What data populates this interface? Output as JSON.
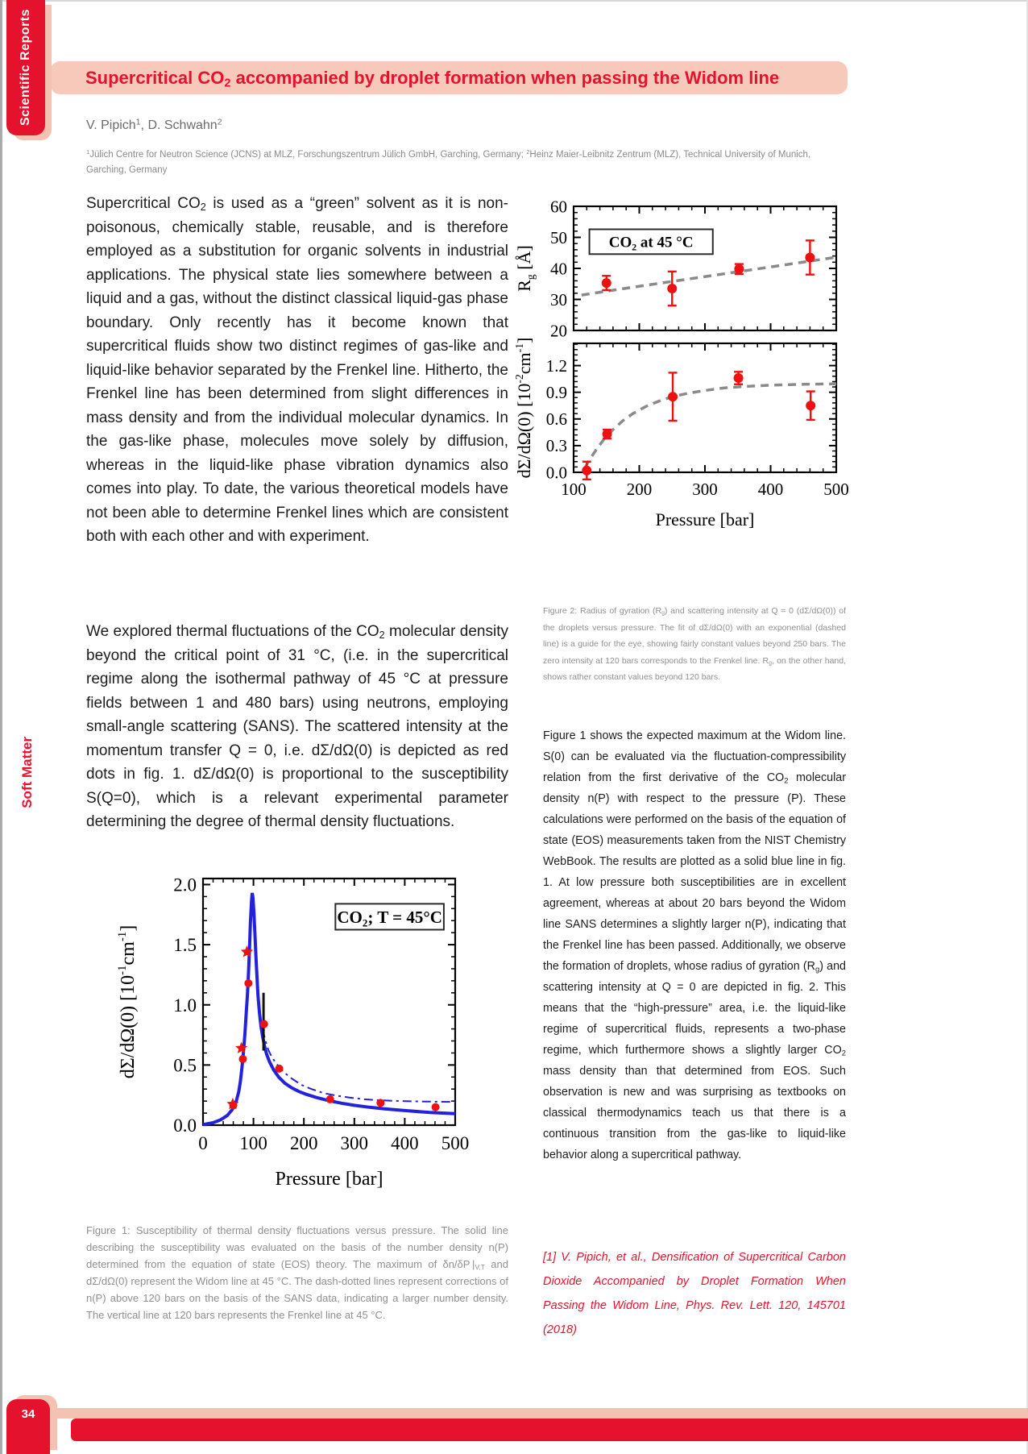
{
  "page": {
    "colors": {
      "accent_red": "#e5122d",
      "banner_pink": "#f7c9bb",
      "shadow_pink": "#f5c2b2",
      "caption_gray": "#8f8f8f",
      "body_text": "#1c1c1c"
    },
    "sidebar": {
      "journal_badge": "Scientific Reports",
      "section_label": "Soft Matter",
      "page_number": "34"
    },
    "header": {
      "title_html": "Supercritical CO<sub>2</sub> accompanied by droplet formation when passing the Widom line",
      "authors_html": "V. Pipich<sup>1</sup>, D. Schwahn<sup>2</sup>",
      "affiliation_html": "<sup>1</sup>Jülich Centre for Neutron Science (JCNS) at MLZ, Forschungszentrum Jülich GmbH, Garching, Germany; <sup>2</sup>Heinz Maier-Leibnitz Zentrum (MLZ), Technical University of Munich, Garching, Germany"
    },
    "left_column": {
      "paragraph1_html": "Supercritical CO<sub>2</sub> is used as a “green” solvent as it is non-poisonous, chemically stable, reusable, and is therefore employed as a substitution for organic solvents in industrial applications. The physical state lies somewhere between a liquid and a gas, without the distinct classical liquid-gas phase boundary. Only recently has it become known that supercritical fluids show two distinct regimes of gas-like and liquid-like behavior separated by the Frenkel line. Hitherto, the Frenkel line has been determined from slight differences in mass density and from the individual molecular dynamics. In the gas-like phase, molecules move solely by diffusion, whereas in the liquid-like phase vibration dynamics also comes into play. To date, the various theoretical models have not been able to determine Frenkel lines which are consistent both with each other and with experiment.",
      "paragraph2_html": "We explored thermal fluctuations of the CO<sub>2</sub> molecular density beyond the critical point of 31 °C, (i.e. in the supercritical regime along the isothermal pathway of 45 °C at pressure fields between 1 and 480 bars) using neutrons, employing small-angle scattering (SANS). The scattered intensity at the momentum transfer Q = 0, i.e. dΣ/dΩ(0) is depicted as red dots in fig. 1. dΣ/dΩ(0) is proportional to the susceptibility S(Q=0), which is a relevant experimental parameter determining the degree of thermal density fluctuations.",
      "figure1_caption_html": "Figure 1: Susceptibility of thermal density fluctuations versus pressure. The solid line describing the susceptibility was evaluated on the basis of the number density n(P) determined from the equation of state (EOS) theory. The maximum of δn/δP |<sub>V,T</sub> and dΣ/dΩ(0) represent the Widom line at 45 °C. The dash-dotted lines represent corrections of n(P) above 120 bars on the basis of the SANS data, indicating a larger number density. The vertical line at 120 bars represents the Frenkel line at 45 °C."
    },
    "right_column": {
      "figure2_caption_html": "Figure 2: Radius of gyration (R<sub>g</sub>) and scattering intensity at Q = 0 (dΣ/dΩ(0)) of the droplets versus pressure. The fit of dΣ/dΩ(0) with an exponential (dashed line) is a guide for the eye, showing fairly constant values beyond 250 bars. The zero intensity at 120 bars corresponds to the Frenkel line. R<sub>g</sub>, on the other hand, shows rather constant values beyond 120 bars.",
      "paragraph3_html": "Figure 1 shows the expected maximum at the Widom line. S(0) can be evaluated via the fluctuation-compressibility relation from the first derivative of the CO<sub>2</sub> molecular density n(P) with respect to the pressure (P). These calculations were performed on the basis of the equation of state (EOS) measurements taken from the NIST Chemistry WebBook. The results are plotted as a solid blue line in fig. 1. At low pressure both susceptibilities are in excellent agreement, whereas at about 20 bars beyond the Widom line SANS determines a slightly larger n(P), indicating that the Frenkel line has been passed. Additionally, we observe the formation of droplets, whose radius of gyration (R<sub>g</sub>) and scattering intensity at Q = 0 are depicted in fig. 2. This means that the “high-pressure” area, i.e. the liquid-like regime of supercritical fluids, represents a two-phase regime, which furthermore shows a slightly larger CO<sub>2</sub> mass density than that determined from EOS. Such observation is new and was surprising as textbooks on classical thermodynamics teach us that there is a continuous transition from the gas-like to liquid-like behavior along a supercritical pathway.",
      "reference_html": "[1] V. Pipich, et al., Densification of Supercritical Carbon Dioxide Accompanied by Droplet Formation When Passing the Widom Line, Phys. Rev. Lett. 120, 145701 (2018)"
    }
  },
  "chart_data": [
    {
      "id": "figure1",
      "type": "line",
      "annotation": [
        {
          "t": "CO"
        },
        {
          "t": "2",
          "sub": true
        },
        {
          "t": "; T = 45°C"
        }
      ],
      "xlabel": "Pressure [bar]",
      "ylabel": [
        {
          "t": "dΣ/dΩ(0) [10"
        },
        {
          "t": "-1",
          "sup": true
        },
        {
          "t": "cm"
        },
        {
          "t": "-1",
          "sup": true
        },
        {
          "t": "]"
        }
      ],
      "xlim": [
        0,
        500
      ],
      "ylim": [
        0,
        2.05
      ],
      "xticks": [
        0,
        100,
        200,
        300,
        400,
        500
      ],
      "yticks": [
        0,
        0.5,
        1,
        1.5,
        2
      ],
      "ytick_labels": [
        "0.0",
        "0.5",
        "1.0",
        "1.5",
        "2.0"
      ],
      "x_minor": 20,
      "y_minor": 0.1,
      "series": [
        {
          "name": "eos-susceptibility-solid-line",
          "type": "line",
          "color": "#2222dd",
          "width": 4,
          "style": "solid",
          "points": [
            [
              0,
              0.005
            ],
            [
              20,
              0.02
            ],
            [
              35,
              0.045
            ],
            [
              48,
              0.08
            ],
            [
              58,
              0.13
            ],
            [
              66,
              0.2
            ],
            [
              71,
              0.28
            ],
            [
              74,
              0.36
            ],
            [
              77,
              0.47
            ],
            [
              80,
              0.6
            ],
            [
              83,
              0.76
            ],
            [
              86,
              0.95
            ],
            [
              88,
              1.08
            ],
            [
              90,
              1.24
            ],
            [
              92,
              1.45
            ],
            [
              94,
              1.68
            ],
            [
              96,
              1.85
            ],
            [
              97.5,
              1.93
            ],
            [
              99,
              1.89
            ],
            [
              101,
              1.76
            ],
            [
              103,
              1.58
            ],
            [
              105,
              1.4
            ],
            [
              107,
              1.23
            ],
            [
              109,
              1.08
            ],
            [
              112,
              0.93
            ],
            [
              115,
              0.82
            ],
            [
              118,
              0.74
            ],
            [
              122,
              0.655
            ],
            [
              126,
              0.59
            ],
            [
              132,
              0.525
            ],
            [
              140,
              0.46
            ],
            [
              150,
              0.4
            ],
            [
              162,
              0.35
            ],
            [
              175,
              0.312
            ],
            [
              190,
              0.28
            ],
            [
              205,
              0.256
            ],
            [
              225,
              0.23
            ],
            [
              250,
              0.203
            ],
            [
              275,
              0.182
            ],
            [
              300,
              0.165
            ],
            [
              330,
              0.149
            ],
            [
              360,
              0.136
            ],
            [
              400,
              0.121
            ],
            [
              450,
              0.106
            ],
            [
              500,
              0.095
            ]
          ]
        },
        {
          "name": "sans-corrected-dashdot-line",
          "type": "line",
          "color": "#2222dd",
          "width": 2,
          "style": "dashdot",
          "points": [
            [
              118,
              0.8
            ],
            [
              124,
              0.7
            ],
            [
              130,
              0.62
            ],
            [
              138,
              0.555
            ],
            [
              148,
              0.5
            ],
            [
              160,
              0.44
            ],
            [
              175,
              0.39
            ],
            [
              195,
              0.335
            ],
            [
              215,
              0.3
            ],
            [
              240,
              0.265
            ],
            [
              265,
              0.245
            ],
            [
              290,
              0.23
            ],
            [
              320,
              0.215
            ],
            [
              350,
              0.207
            ],
            [
              390,
              0.2
            ],
            [
              440,
              0.196
            ],
            [
              500,
              0.193
            ]
          ]
        },
        {
          "name": "frenkel-line-marker",
          "type": "line",
          "color": "#111111",
          "width": 3,
          "style": "solid",
          "points": [
            [
              120,
              0.62
            ],
            [
              120,
              1.1
            ]
          ]
        },
        {
          "name": "sans-data-dots",
          "type": "scatter",
          "marker": "circle",
          "color": "#ee1111",
          "points": [
            [
              60,
              0.165
            ],
            [
              79,
              0.55
            ],
            [
              90,
              1.18
            ],
            [
              121,
              0.84
            ],
            [
              151,
              0.47
            ],
            [
              252,
              0.215
            ],
            [
              352,
              0.185
            ],
            [
              461,
              0.15
            ]
          ]
        },
        {
          "name": "sans-data-stars",
          "type": "scatter",
          "marker": "star",
          "color": "#ee1111",
          "points": [
            [
              59,
              0.175
            ],
            [
              76,
              0.64
            ],
            [
              87,
              1.44
            ]
          ]
        }
      ]
    },
    {
      "id": "figure2-rg",
      "type": "scatter",
      "annotation": [
        {
          "t": "CO"
        },
        {
          "t": "2",
          "sub": true
        },
        {
          "t": " at 45 °C"
        }
      ],
      "ylabel": [
        {
          "t": "R"
        },
        {
          "t": "g",
          "sub": true
        },
        {
          "t": " [Å]"
        }
      ],
      "xlim": [
        100,
        500
      ],
      "ylim": [
        20,
        60
      ],
      "xticks": [
        100,
        200,
        300,
        400,
        500
      ],
      "show_xtick_labels": false,
      "yticks": [
        20,
        30,
        40,
        50,
        60
      ],
      "x_minor": 20,
      "y_minor": 2,
      "series": [
        {
          "name": "rg-trend-dashed-line",
          "type": "line",
          "color": "#8a8a8a",
          "width": 3.5,
          "style": "dashed",
          "points": [
            [
              112,
              31.4
            ],
            [
              180,
              33.6
            ],
            [
              260,
              36.1
            ],
            [
              340,
              38.6
            ],
            [
              420,
              41.1
            ],
            [
              500,
              43.6
            ]
          ]
        },
        {
          "name": "rg-data-points",
          "type": "scatter",
          "marker": "circle",
          "color": "#ee1111",
          "points": [
            [
              150,
              35.3
            ],
            [
              250,
              33.5
            ],
            [
              352,
              39.8
            ],
            [
              460,
              43.5
            ]
          ],
          "yerr": [
            2.3,
            5.5,
            1.6,
            5.5
          ]
        }
      ]
    },
    {
      "id": "figure2-intensity",
      "type": "scatter",
      "xlabel": "Pressure [bar]",
      "ylabel": [
        {
          "t": "dΣ/dΩ(0) [10"
        },
        {
          "t": "-2",
          "sup": true
        },
        {
          "t": "cm"
        },
        {
          "t": "-1",
          "sup": true
        },
        {
          "t": "]"
        }
      ],
      "xlim": [
        100,
        500
      ],
      "ylim": [
        0,
        1.45
      ],
      "xticks": [
        100,
        200,
        300,
        400,
        500
      ],
      "yticks": [
        0,
        0.3,
        0.6,
        0.9,
        1.2
      ],
      "ytick_labels": [
        "0.0",
        "0.3",
        "0.6",
        "0.9",
        "1.2"
      ],
      "x_minor": 20,
      "y_minor": 0.06,
      "series": [
        {
          "name": "intensity-exponential-fit-dashed",
          "type": "line",
          "color": "#8a8a8a",
          "width": 3.5,
          "style": "dashed",
          "points": [
            [
              117,
              0.05
            ],
            [
              125,
              0.15
            ],
            [
              135,
              0.26
            ],
            [
              147,
              0.38
            ],
            [
              160,
              0.48
            ],
            [
              175,
              0.58
            ],
            [
              190,
              0.66
            ],
            [
              210,
              0.74
            ],
            [
              230,
              0.8
            ],
            [
              250,
              0.85
            ],
            [
              275,
              0.89
            ],
            [
              300,
              0.92
            ],
            [
              330,
              0.95
            ],
            [
              360,
              0.965
            ],
            [
              400,
              0.98
            ],
            [
              450,
              0.99
            ],
            [
              500,
              0.995
            ]
          ]
        },
        {
          "name": "intensity-data-points",
          "type": "scatter",
          "marker": "circle",
          "color": "#ee1111",
          "points": [
            [
              120,
              0.02
            ],
            [
              151,
              0.43
            ],
            [
              251,
              0.85
            ],
            [
              351,
              1.06
            ],
            [
              461,
              0.75
            ]
          ],
          "yerr": [
            0.1,
            0.05,
            0.27,
            0.07,
            0.16
          ]
        }
      ]
    }
  ]
}
